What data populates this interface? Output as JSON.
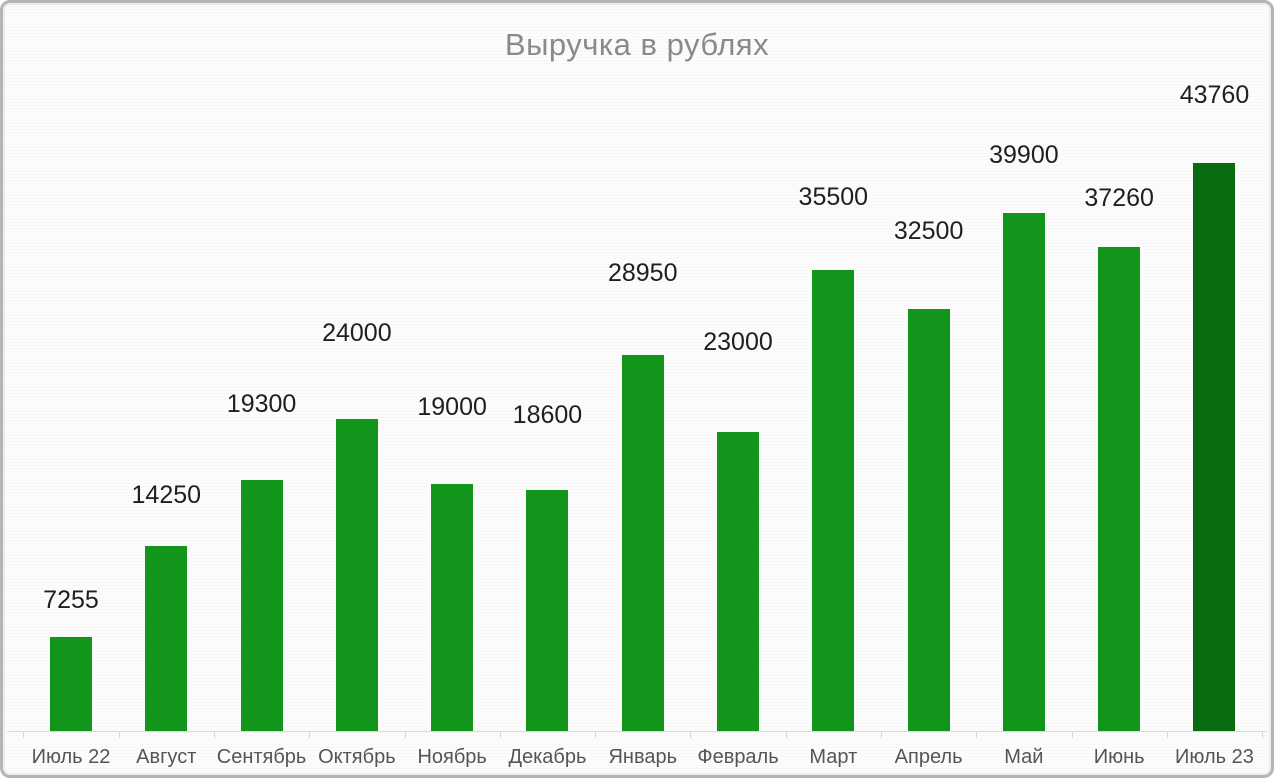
{
  "chart_data": {
    "type": "bar",
    "title": "Выручка в рублях",
    "categories": [
      "Июль 22",
      "Август",
      "Сентябрь",
      "Октябрь",
      "Ноябрь",
      "Декабрь",
      "Январь",
      "Февраль",
      "Март",
      "Апрель",
      "Май",
      "Июнь",
      "Июль 23"
    ],
    "values": [
      7255,
      14250,
      19300,
      24000,
      19000,
      18600,
      28950,
      23000,
      35500,
      32500,
      39900,
      37260,
      43760
    ],
    "xlabel": "",
    "ylabel": "",
    "ylim": [
      0,
      43760
    ],
    "grid": false,
    "legend": false,
    "data_labels_shown": true,
    "bar_color": "#12951B",
    "highlight_index": 12,
    "highlight_color": "#0A6C10",
    "title_color": "#8a8a8a",
    "value_label_color": "#1f1f1f",
    "axis_label_color": "#555555",
    "axis_color": "#d9d9d9"
  }
}
